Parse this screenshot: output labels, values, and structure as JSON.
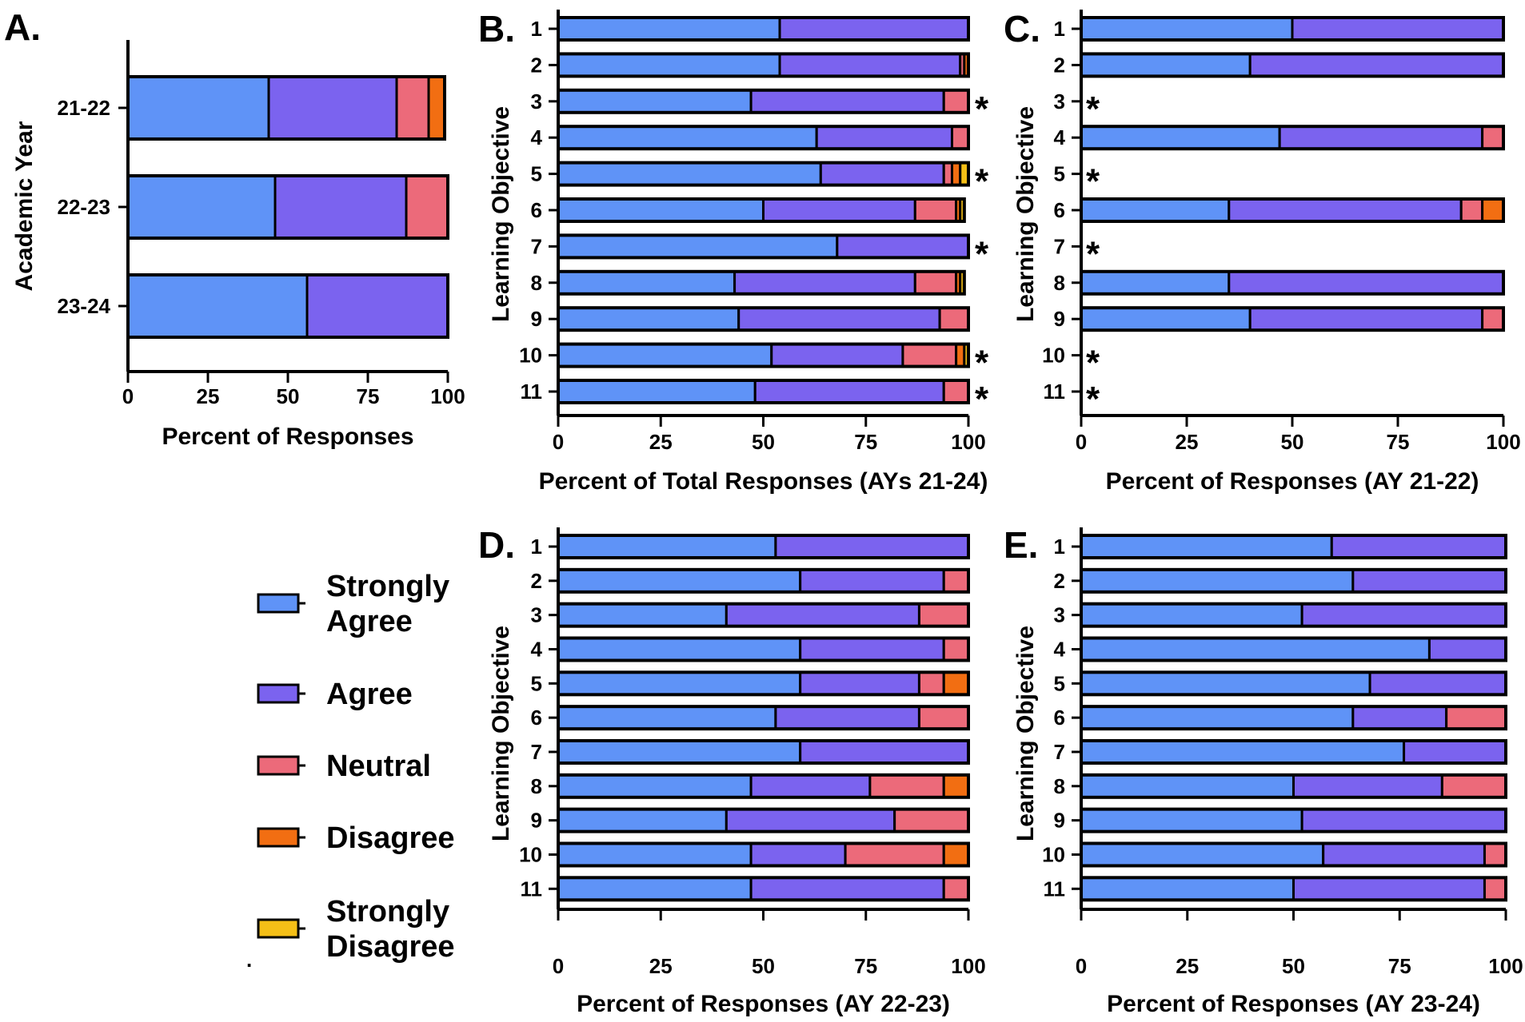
{
  "colors": {
    "strongly_agree": "#5f93f7",
    "agree": "#7b63ef",
    "neutral": "#ec6a7a",
    "disagree": "#f26e12",
    "strongly_disagree": "#f4bf17",
    "outline": "#000000"
  },
  "legend": {
    "items": [
      {
        "key": "strongly_agree",
        "lines": [
          "Strongly",
          "Agree"
        ]
      },
      {
        "key": "agree",
        "lines": [
          "Agree"
        ]
      },
      {
        "key": "neutral",
        "lines": [
          "Neutral"
        ]
      },
      {
        "key": "disagree",
        "lines": [
          "Disagree"
        ]
      },
      {
        "key": "strongly_disagree",
        "lines": [
          "Strongly",
          "Disagree"
        ]
      }
    ],
    "dot": "."
  },
  "chart_data": [
    {
      "id": "A",
      "panel_letter": "A.",
      "type": "bar",
      "orientation": "horizontal",
      "stacked": true,
      "xlabel": "Percent of Responses",
      "ylabel": "Academic Year",
      "xlim": [
        0,
        100
      ],
      "xticks": [
        0,
        25,
        50,
        75,
        100
      ],
      "categories": [
        "21-22",
        "22-23",
        "23-24"
      ],
      "series": [
        {
          "name": "Strongly Agree",
          "values": [
            44,
            46,
            56
          ]
        },
        {
          "name": "Agree",
          "values": [
            40,
            41,
            44
          ]
        },
        {
          "name": "Neutral",
          "values": [
            10,
            13,
            0
          ]
        },
        {
          "name": "Disagree",
          "values": [
            5,
            0,
            0
          ]
        },
        {
          "name": "Strongly Disagree",
          "values": [
            0,
            0,
            0
          ]
        }
      ],
      "annotations": []
    },
    {
      "id": "B",
      "panel_letter": "B.",
      "type": "bar",
      "orientation": "horizontal",
      "stacked": true,
      "xlabel": "Percent of Total Responses (AYs 21-24)",
      "ylabel": "Learning Objective",
      "xlim": [
        0,
        100
      ],
      "xticks": [
        0,
        25,
        50,
        75,
        100
      ],
      "categories": [
        "1",
        "2",
        "3",
        "4",
        "5",
        "6",
        "7",
        "8",
        "9",
        "10",
        "11"
      ],
      "series": [
        {
          "name": "Strongly Agree",
          "values": [
            54,
            54,
            47,
            63,
            64,
            50,
            68,
            43,
            44,
            52,
            48
          ]
        },
        {
          "name": "Agree",
          "values": [
            46,
            44,
            47,
            33,
            30,
            37,
            32,
            44,
            49,
            32,
            46
          ]
        },
        {
          "name": "Neutral",
          "values": [
            0,
            1,
            6,
            4,
            2,
            10,
            0,
            10,
            7,
            13,
            6
          ]
        },
        {
          "name": "Disagree",
          "values": [
            0,
            1,
            0,
            0,
            2,
            1,
            0,
            1,
            0,
            2,
            0
          ]
        },
        {
          "name": "Strongly Disagree",
          "values": [
            0,
            0,
            0,
            0,
            2,
            1,
            0,
            1,
            0,
            1,
            0
          ]
        }
      ],
      "annotations": [
        {
          "category": "3",
          "text": "*"
        },
        {
          "category": "5",
          "text": "*"
        },
        {
          "category": "7",
          "text": "*"
        },
        {
          "category": "10",
          "text": "*"
        },
        {
          "category": "11",
          "text": "*"
        }
      ]
    },
    {
      "id": "C",
      "panel_letter": "C.",
      "type": "bar",
      "orientation": "horizontal",
      "stacked": true,
      "xlabel": "Percent of Responses (AY 21-22)",
      "ylabel": "Learning Objective",
      "xlim": [
        0,
        100
      ],
      "xticks": [
        0,
        25,
        50,
        75,
        100
      ],
      "categories": [
        "1",
        "2",
        "3",
        "4",
        "5",
        "6",
        "7",
        "8",
        "9",
        "10",
        "11"
      ],
      "series": [
        {
          "name": "Strongly Agree",
          "values": [
            50,
            40,
            0,
            47,
            0,
            35,
            0,
            35,
            40,
            0,
            0
          ]
        },
        {
          "name": "Agree",
          "values": [
            50,
            60,
            0,
            48,
            0,
            55,
            0,
            65,
            55,
            0,
            0
          ]
        },
        {
          "name": "Neutral",
          "values": [
            0,
            0,
            0,
            5,
            0,
            5,
            0,
            0,
            5,
            0,
            0
          ]
        },
        {
          "name": "Disagree",
          "values": [
            0,
            0,
            0,
            0,
            0,
            5,
            0,
            0,
            0,
            0,
            0
          ]
        },
        {
          "name": "Strongly Disagree",
          "values": [
            0,
            0,
            0,
            0,
            0,
            0,
            0,
            0,
            0,
            0,
            0
          ]
        }
      ],
      "annotations": [
        {
          "category": "3",
          "text": "*"
        },
        {
          "category": "5",
          "text": "*"
        },
        {
          "category": "7",
          "text": "*"
        },
        {
          "category": "10",
          "text": "*"
        },
        {
          "category": "11",
          "text": "*"
        }
      ]
    },
    {
      "id": "D",
      "panel_letter": "D.",
      "type": "bar",
      "orientation": "horizontal",
      "stacked": true,
      "xlabel": "Percent of Responses (AY 22-23)",
      "ylabel": "Learning Objective",
      "xlim": [
        0,
        100
      ],
      "xticks": [
        0,
        25,
        50,
        75,
        100
      ],
      "categories": [
        "1",
        "2",
        "3",
        "4",
        "5",
        "6",
        "7",
        "8",
        "9",
        "10",
        "11"
      ],
      "series": [
        {
          "name": "Strongly Agree",
          "values": [
            53,
            59,
            41,
            59,
            59,
            53,
            59,
            47,
            41,
            47,
            47
          ]
        },
        {
          "name": "Agree",
          "values": [
            47,
            35,
            47,
            35,
            29,
            35,
            41,
            29,
            41,
            23,
            47
          ]
        },
        {
          "name": "Neutral",
          "values": [
            0,
            6,
            12,
            6,
            6,
            12,
            0,
            18,
            18,
            24,
            6
          ]
        },
        {
          "name": "Disagree",
          "values": [
            0,
            0,
            0,
            0,
            6,
            0,
            0,
            6,
            0,
            6,
            0
          ]
        },
        {
          "name": "Strongly Disagree",
          "values": [
            0,
            0,
            0,
            0,
            0,
            0,
            0,
            0,
            0,
            0,
            0
          ]
        }
      ],
      "annotations": []
    },
    {
      "id": "E",
      "panel_letter": "E.",
      "type": "bar",
      "orientation": "horizontal",
      "stacked": true,
      "xlabel": "Percent of Responses (AY 23-24)",
      "ylabel": "Learning Objective",
      "xlim": [
        0,
        100
      ],
      "xticks": [
        0,
        25,
        50,
        75,
        100
      ],
      "categories": [
        "1",
        "2",
        "3",
        "4",
        "5",
        "6",
        "7",
        "8",
        "9",
        "10",
        "11"
      ],
      "series": [
        {
          "name": "Strongly Agree",
          "values": [
            59,
            64,
            52,
            82,
            68,
            64,
            76,
            50,
            52,
            57,
            50
          ]
        },
        {
          "name": "Agree",
          "values": [
            41,
            36,
            48,
            18,
            32,
            22,
            24,
            35,
            48,
            38,
            45
          ]
        },
        {
          "name": "Neutral",
          "values": [
            0,
            0,
            0,
            0,
            0,
            14,
            0,
            15,
            0,
            5,
            5
          ]
        },
        {
          "name": "Disagree",
          "values": [
            0,
            0,
            0,
            0,
            0,
            0,
            0,
            0,
            0,
            0,
            0
          ]
        },
        {
          "name": "Strongly Disagree",
          "values": [
            0,
            0,
            0,
            0,
            0,
            0,
            0,
            0,
            0,
            0,
            0
          ]
        }
      ],
      "annotations": []
    }
  ]
}
